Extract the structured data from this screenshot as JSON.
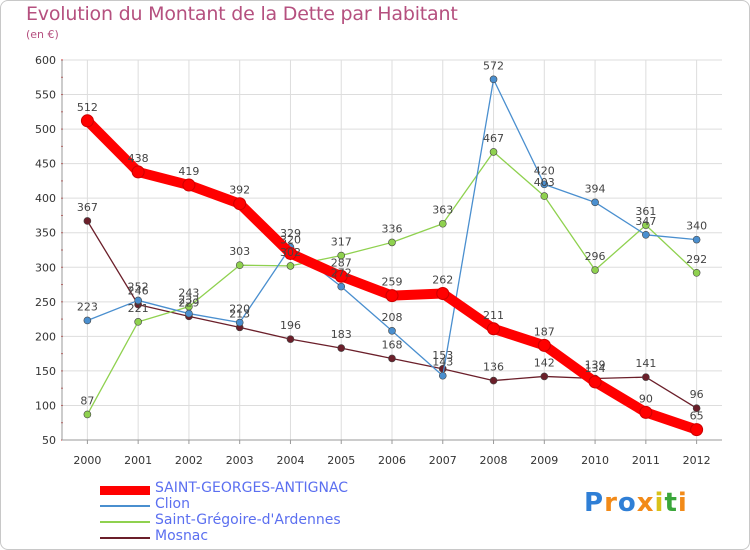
{
  "chart_data": {
    "type": "line",
    "title": "Evolution du Montant de la Dette par Habitant",
    "unit": "(en €)",
    "x": [
      "2000",
      "2001",
      "2002",
      "2003",
      "2004",
      "2005",
      "2006",
      "2007",
      "2008",
      "2009",
      "2010",
      "2011",
      "2012"
    ],
    "ylim": [
      50,
      600
    ],
    "yticks": [
      50,
      100,
      150,
      200,
      250,
      300,
      350,
      400,
      450,
      500,
      550,
      600
    ],
    "grid": true,
    "legend_position": "bottom-left",
    "series": [
      {
        "name": "SAINT-GEORGES-ANTIGNAC",
        "color": "#ff0000",
        "values": [
          512,
          438,
          419,
          392,
          320,
          287,
          259,
          262,
          211,
          187,
          134,
          90,
          65
        ]
      },
      {
        "name": "Clion",
        "color": "#4a8fcf",
        "values": [
          223,
          252,
          233,
          220,
          329,
          272,
          208,
          143,
          572,
          420,
          394,
          347,
          340
        ]
      },
      {
        "name": "Saint-Grégoire-d'Ardennes",
        "color": "#8fd14f",
        "values": [
          87,
          221,
          243,
          303,
          302,
          317,
          336,
          363,
          467,
          403,
          296,
          361,
          292
        ]
      },
      {
        "name": "Mosnac",
        "color": "#6b1f2a",
        "values": [
          367,
          246,
          229,
          213,
          196,
          183,
          168,
          153,
          136,
          142,
          139,
          141,
          96
        ]
      }
    ]
  },
  "logo": {
    "text": "Proxiti",
    "colors": [
      "#2f7fd6",
      "#f28a18",
      "#2f7fd6",
      "#f28a18",
      "#d9c21a",
      "#3aa63a",
      "#f28a18"
    ]
  }
}
